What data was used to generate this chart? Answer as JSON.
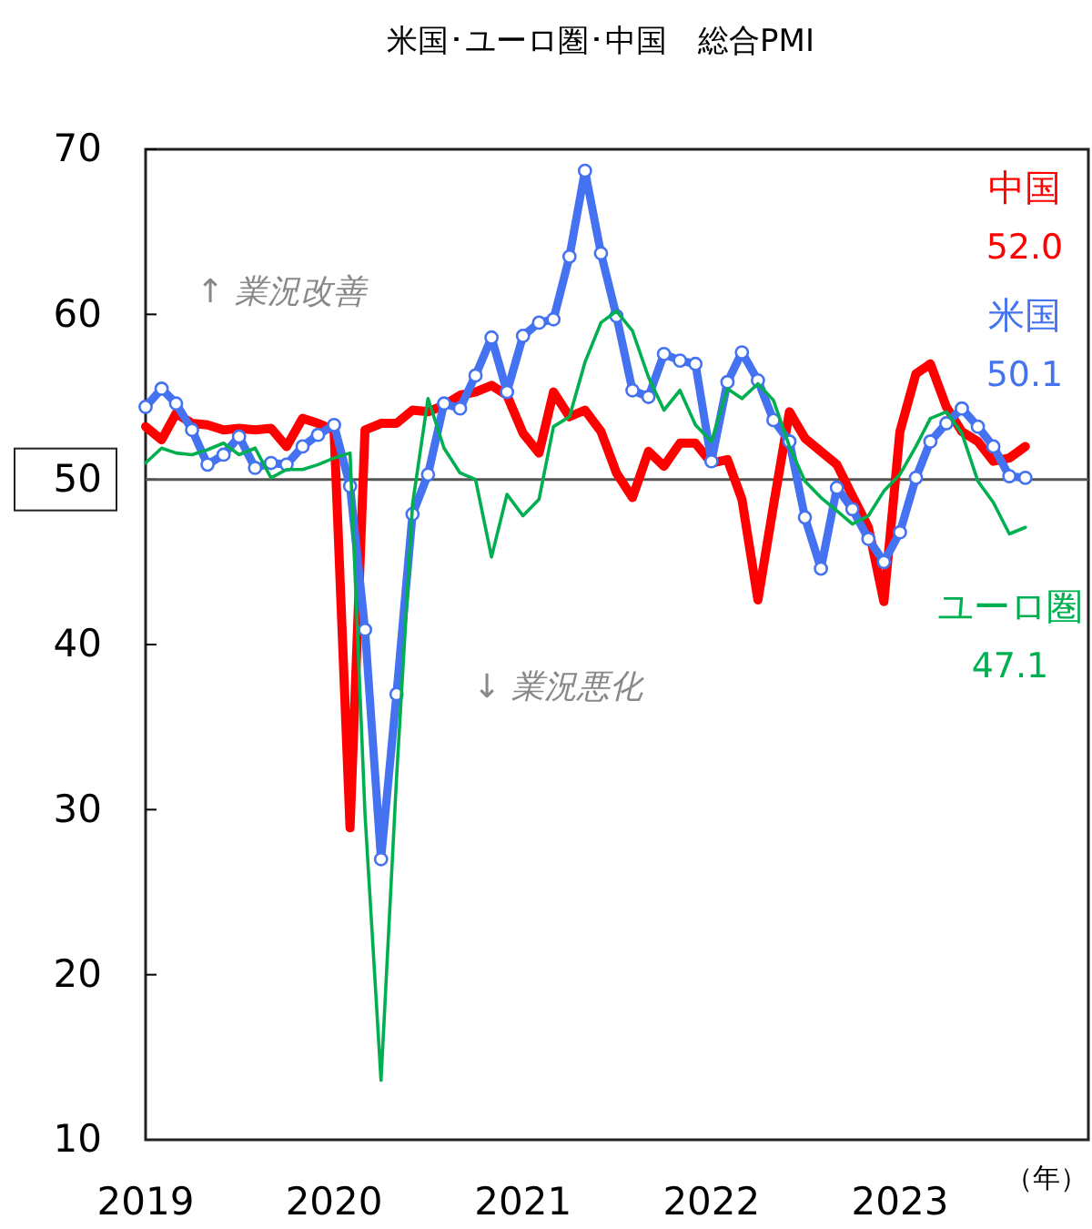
{
  "chart_data": {
    "type": "line",
    "title": "米国･ユーロ圏･中国　総合PMI",
    "xlabel": "（年）",
    "x": [
      "2019-01",
      "2019-02",
      "2019-03",
      "2019-04",
      "2019-05",
      "2019-06",
      "2019-07",
      "2019-08",
      "2019-09",
      "2019-10",
      "2019-11",
      "2019-12",
      "2020-01",
      "2020-02",
      "2020-03",
      "2020-04",
      "2020-05",
      "2020-06",
      "2020-07",
      "2020-08",
      "2020-09",
      "2020-10",
      "2020-11",
      "2020-12",
      "2021-01",
      "2021-02",
      "2021-03",
      "2021-04",
      "2021-05",
      "2021-06",
      "2021-07",
      "2021-08",
      "2021-09",
      "2021-10",
      "2021-11",
      "2021-12",
      "2022-01",
      "2022-02",
      "2022-03",
      "2022-04",
      "2022-05",
      "2022-06",
      "2022-07",
      "2022-08",
      "2022-09",
      "2022-10",
      "2022-11",
      "2022-12",
      "2023-01",
      "2023-02",
      "2023-03",
      "2023-04",
      "2023-05",
      "2023-06",
      "2023-07",
      "2023-08",
      "2023-09"
    ],
    "series": [
      {
        "name": "中国",
        "color": "#ff0000",
        "marker": "none",
        "values": [
          53.2,
          52.4,
          54.0,
          53.4,
          53.3,
          53.0,
          53.1,
          53.0,
          53.1,
          52.0,
          53.7,
          53.4,
          53.0,
          28.9,
          53.0,
          53.4,
          53.4,
          54.2,
          54.1,
          54.5,
          55.1,
          55.3,
          55.7,
          55.1,
          52.8,
          51.6,
          55.3,
          53.8,
          54.2,
          52.9,
          50.4,
          48.9,
          51.7,
          50.8,
          52.2,
          52.2,
          51.0,
          51.2,
          48.8,
          42.7,
          48.4,
          54.1,
          52.5,
          51.7,
          50.9,
          49.0,
          47.1,
          42.6,
          52.9,
          56.4,
          57.0,
          54.4,
          52.9,
          52.3,
          51.1,
          51.3,
          52.0
        ]
      },
      {
        "name": "米国",
        "color": "#4472f0",
        "marker": "circle",
        "values": [
          54.4,
          55.5,
          54.6,
          53.0,
          50.9,
          51.5,
          52.6,
          50.7,
          51.0,
          50.9,
          52.0,
          52.7,
          53.3,
          49.6,
          40.9,
          27.0,
          37.0,
          47.9,
          50.3,
          54.6,
          54.3,
          56.3,
          58.6,
          55.3,
          58.7,
          59.5,
          59.7,
          63.5,
          68.7,
          63.7,
          59.9,
          55.4,
          55.0,
          57.6,
          57.2,
          57.0,
          51.1,
          55.9,
          57.7,
          56.0,
          53.6,
          52.3,
          47.7,
          44.6,
          49.5,
          48.2,
          46.4,
          45.0,
          46.8,
          50.1,
          52.3,
          53.4,
          54.3,
          53.2,
          52.0,
          50.2,
          50.1
        ]
      },
      {
        "name": "ユーロ圏",
        "color": "#00b050",
        "marker": "none",
        "values": [
          51.0,
          51.9,
          51.6,
          51.5,
          51.8,
          52.2,
          51.5,
          51.9,
          50.1,
          50.6,
          50.6,
          50.9,
          51.3,
          51.6,
          29.7,
          13.6,
          31.9,
          48.5,
          54.9,
          51.9,
          50.4,
          50.0,
          45.3,
          49.1,
          47.8,
          48.8,
          53.2,
          53.8,
          57.1,
          59.5,
          60.2,
          59.0,
          56.2,
          54.2,
          55.4,
          53.3,
          52.3,
          55.5,
          54.9,
          55.8,
          54.8,
          52.0,
          49.9,
          48.9,
          48.1,
          47.3,
          47.8,
          49.3,
          50.3,
          52.0,
          53.7,
          54.1,
          52.8,
          49.9,
          48.6,
          46.7,
          47.1
        ]
      }
    ],
    "xlim": [
      "2019-01",
      "2024-01"
    ],
    "xticks": [
      {
        "value": "2019-01",
        "label": "2019"
      },
      {
        "value": "2020-01",
        "label": "2020"
      },
      {
        "value": "2021-01",
        "label": "2021"
      },
      {
        "value": "2022-01",
        "label": "2022"
      },
      {
        "value": "2023-01",
        "label": "2023"
      }
    ],
    "ylim": [
      10,
      70
    ],
    "yticks": [
      10,
      20,
      30,
      40,
      50,
      60,
      70
    ],
    "ref_lines": [
      {
        "axis": "y",
        "value": 50,
        "color": "#555555"
      }
    ],
    "annotations": [
      "↑ 業況改善",
      "↓ 業況悪化",
      "52.0",
      "50.1",
      "47.1"
    ],
    "grid": false,
    "legend": "right",
    "line_style": "solid"
  }
}
